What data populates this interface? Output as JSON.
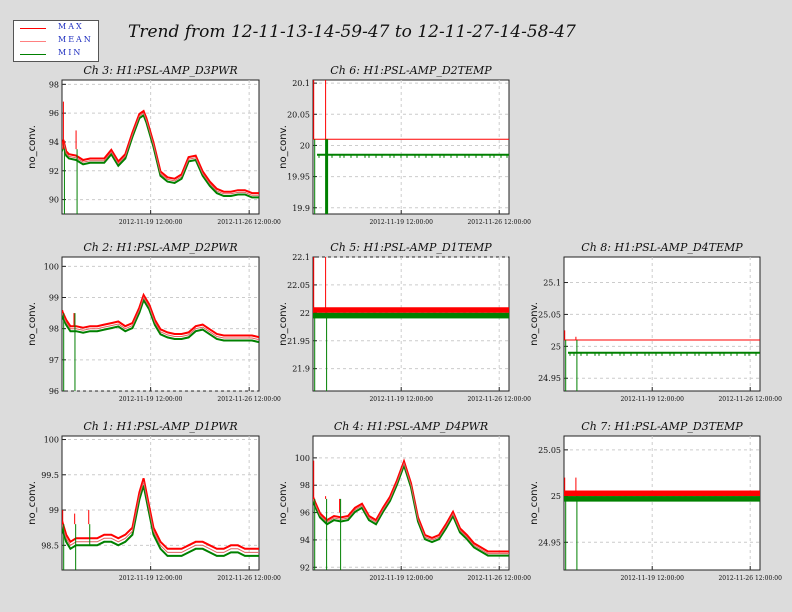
{
  "title": "Trend from 12-11-13-14-59-47 to 12-11-27-14-58-47",
  "legend": [
    {
      "label": "MAX",
      "color": "#ff0000"
    },
    {
      "label": "MEAN",
      "color": "#ff8080"
    },
    {
      "label": "MIN",
      "color": "#008000"
    }
  ],
  "colors": {
    "max": "#ff0000",
    "mean": "#e06060",
    "min": "#008000",
    "grid": "#cccccc"
  },
  "chart_data": [
    {
      "type": "line",
      "title": "Ch 3: H1:PSL-AMP_D3PWR",
      "ylabel": "no_conv.",
      "ylim": [
        89,
        98.3
      ],
      "yticks": [
        "90",
        "92",
        "94",
        "96",
        "98"
      ],
      "ytick_values": [
        90,
        92,
        94,
        96,
        98
      ],
      "xticks": [
        "2012-11-19 12:00:00",
        "2012-11-26 12:00:00"
      ],
      "xlim": [
        0,
        14
      ],
      "xtick_values": [
        6.3,
        13.3
      ],
      "series": [
        {
          "values_x": [
            0,
            0.1,
            0.15,
            0.3,
            0.5,
            1.0,
            1.5,
            2.0,
            2.5,
            3.0,
            3.5,
            4.0,
            4.5,
            5.0,
            5.5,
            5.8,
            6.0,
            6.5,
            7.0,
            7.5,
            8.0,
            8.5,
            9.0,
            9.5,
            10.0,
            10.5,
            11.0,
            11.5,
            12.0,
            12.5,
            13.0,
            13.5,
            14.0
          ],
          "values": [
            93.5,
            94.0,
            93.8,
            93.2,
            93.0,
            92.9,
            92.6,
            92.7,
            92.7,
            92.7,
            93.3,
            92.5,
            93.0,
            94.5,
            95.8,
            96.0,
            95.5,
            93.8,
            91.8,
            91.4,
            91.3,
            91.6,
            92.8,
            92.9,
            91.8,
            91.1,
            90.6,
            90.4,
            90.4,
            90.5,
            90.5,
            90.3,
            90.3
          ]
        }
      ],
      "spikes": [
        {
          "x": 0.1,
          "ymax": 96.8,
          "ymin": 89.0
        },
        {
          "x": 1.0,
          "ymax": 94.8,
          "ymin": 89.0
        }
      ],
      "band": 0.15
    },
    {
      "type": "line",
      "title": "Ch 6: H1:PSL-AMP_D2TEMP",
      "ylabel": "no_conv.",
      "ylim": [
        19.89,
        20.105
      ],
      "yticks": [
        "19.9",
        "19.95",
        "20",
        "20.05",
        "20.1"
      ],
      "ytick_values": [
        19.9,
        19.95,
        20.0,
        20.05,
        20.1
      ],
      "xticks": [
        "2012-11-19 12:00:00",
        "2012-11-26 12:00:00"
      ],
      "xlim": [
        0,
        14
      ],
      "xtick_values": [
        6.3,
        13.3
      ],
      "series": [
        {
          "values_x": [
            0,
            14
          ],
          "values": [
            20.01,
            20.01
          ]
        }
      ],
      "min_level": 19.985,
      "min_flicker": 19.98,
      "spikes": [
        {
          "x": 0.05,
          "ymax": 20.105,
          "ymin": 19.89
        },
        {
          "x": 0.9,
          "ymax": 20.105,
          "ymin": 19.89
        }
      ],
      "band": 0.004
    },
    {
      "type": "line",
      "title": "Ch 2: H1:PSL-AMP_D2PWR",
      "ylabel": "no_conv.",
      "ylim": [
        96,
        100.3
      ],
      "yticks": [
        "96",
        "97",
        "98",
        "99",
        "100"
      ],
      "ytick_values": [
        96,
        97,
        98,
        99,
        100
      ],
      "xticks": [
        "2012-11-19 12:00:00",
        "2012-11-26 12:00:00"
      ],
      "xlim": [
        0,
        14
      ],
      "xtick_values": [
        6.3,
        13.3
      ],
      "series": [
        {
          "values_x": [
            0,
            0.3,
            0.6,
            1.0,
            1.5,
            2.0,
            2.5,
            3.0,
            3.5,
            4.0,
            4.5,
            5.0,
            5.5,
            5.8,
            6.2,
            6.6,
            7.0,
            7.5,
            8.0,
            8.5,
            9.0,
            9.5,
            10.0,
            10.5,
            11.0,
            11.5,
            12.0,
            12.5,
            13.0,
            13.5,
            14.0
          ],
          "values": [
            98.5,
            98.2,
            98.0,
            98.0,
            97.95,
            98.0,
            98.0,
            98.05,
            98.1,
            98.15,
            98.0,
            98.1,
            98.6,
            99.0,
            98.7,
            98.2,
            97.9,
            97.8,
            97.75,
            97.75,
            97.8,
            98.0,
            98.05,
            97.9,
            97.75,
            97.7,
            97.7,
            97.7,
            97.7,
            97.7,
            97.65
          ]
        }
      ],
      "spikes": [
        {
          "x": 0.05,
          "ymax": 98.6,
          "ymin": 96.0
        },
        {
          "x": 0.85,
          "ymax": 98.1,
          "ymin": 96.0
        }
      ],
      "band": 0.08
    },
    {
      "type": "line",
      "title": "Ch 5: H1:PSL-AMP_D1TEMP",
      "ylabel": "no_conv.",
      "ylim": [
        21.86,
        22.1
      ],
      "yticks": [
        "21.9",
        "21.95",
        "22",
        "22.05",
        "22.1"
      ],
      "ytick_values": [
        21.9,
        21.95,
        22.0,
        22.05,
        22.1
      ],
      "xticks": [
        "2012-11-19 12:00:00",
        "2012-11-26 12:00:00"
      ],
      "xlim": [
        0,
        14
      ],
      "xtick_values": [
        6.3,
        13.3
      ],
      "series": [
        {
          "values_x": [
            0,
            14
          ],
          "values": [
            22.0,
            22.0
          ]
        }
      ],
      "max_band": [
        22.0,
        22.01
      ],
      "min_band": [
        21.99,
        22.0
      ],
      "spikes": [
        {
          "x": 0.05,
          "ymax": 22.1,
          "ymin": 21.86
        },
        {
          "x": 0.9,
          "ymax": 22.1,
          "ymin": 21.86
        }
      ],
      "band": 0.005
    },
    {
      "type": "line",
      "title": "Ch 8: H1:PSL-AMP_D4TEMP",
      "ylabel": "no_conv.",
      "ylim": [
        24.93,
        25.14
      ],
      "yticks": [
        "24.95",
        "25",
        "25.05",
        "25.1"
      ],
      "ytick_values": [
        24.95,
        25.0,
        25.05,
        25.1
      ],
      "xticks": [
        "2012-11-19 12:00:00",
        "2012-11-26 12:00:00"
      ],
      "xlim": [
        0,
        14
      ],
      "xtick_values": [
        6.3,
        13.3
      ],
      "series": [
        {
          "values_x": [
            0,
            14
          ],
          "values": [
            25.01,
            25.01
          ]
        }
      ],
      "min_level": 24.99,
      "min_flicker": 24.985,
      "spikes": [
        {
          "x": 0.05,
          "ymax": 25.025,
          "ymin": 24.93
        },
        {
          "x": 0.85,
          "ymax": 25.015,
          "ymin": 24.93
        }
      ],
      "band": 0.003
    },
    {
      "type": "line",
      "title": "Ch 1: H1:PSL-AMP_D1PWR",
      "ylabel": "no_conv.",
      "ylim": [
        98.15,
        100.05
      ],
      "yticks": [
        "98.5",
        "99",
        "99.5",
        "100"
      ],
      "ytick_values": [
        98.5,
        99,
        99.5,
        100
      ],
      "xticks": [
        "2012-11-19 12:00:00",
        "2012-11-26 12:00:00"
      ],
      "xlim": [
        0,
        14
      ],
      "xtick_values": [
        6.3,
        13.3
      ],
      "series": [
        {
          "values_x": [
            0,
            0.3,
            0.6,
            1.0,
            1.5,
            2.0,
            2.5,
            3.0,
            3.5,
            4.0,
            4.5,
            5.0,
            5.5,
            5.8,
            6.1,
            6.5,
            7.0,
            7.5,
            8.0,
            8.5,
            9.0,
            9.5,
            10.0,
            10.5,
            11.0,
            11.5,
            12.0,
            12.5,
            13.0,
            13.5,
            14.0
          ],
          "values": [
            98.8,
            98.6,
            98.5,
            98.55,
            98.55,
            98.55,
            98.55,
            98.6,
            98.6,
            98.55,
            98.6,
            98.7,
            99.2,
            99.4,
            99.1,
            98.7,
            98.5,
            98.4,
            98.4,
            98.4,
            98.45,
            98.5,
            98.5,
            98.45,
            98.4,
            98.4,
            98.45,
            98.45,
            98.4,
            98.4,
            98.4
          ]
        }
      ],
      "spikes": [
        {
          "x": 0.05,
          "ymax": 99.0,
          "ymin": 98.15
        },
        {
          "x": 0.9,
          "ymax": 98.95,
          "ymin": 98.15
        },
        {
          "x": 1.9,
          "ymax": 99.0,
          "ymin": 98.5
        }
      ],
      "band": 0.05
    },
    {
      "type": "line",
      "title": "Ch 4: H1:PSL-AMP_D4PWR",
      "ylabel": "no_conv.",
      "ylim": [
        91.8,
        101.6
      ],
      "yticks": [
        "92",
        "94",
        "96",
        "98",
        "100"
      ],
      "ytick_values": [
        92,
        94,
        96,
        98,
        100
      ],
      "xticks": [
        "2012-11-19 12:00:00",
        "2012-11-26 12:00:00"
      ],
      "xlim": [
        0,
        14
      ],
      "xtick_values": [
        6.3,
        13.3
      ],
      "series": [
        {
          "values_x": [
            0,
            0.2,
            0.5,
            1.0,
            1.5,
            2.0,
            2.5,
            3.0,
            3.5,
            4.0,
            4.5,
            5.0,
            5.5,
            6.0,
            6.5,
            7.0,
            7.5,
            8.0,
            8.5,
            9.0,
            9.5,
            10.0,
            10.5,
            11.0,
            11.5,
            12.0,
            12.5,
            13.0,
            13.5,
            14.0
          ],
          "values": [
            97.0,
            96.5,
            95.8,
            95.3,
            95.6,
            95.5,
            95.6,
            96.2,
            96.5,
            95.6,
            95.3,
            96.2,
            97.0,
            98.2,
            99.6,
            98.0,
            95.5,
            94.2,
            94.0,
            94.2,
            95.0,
            95.9,
            94.7,
            94.2,
            93.6,
            93.3,
            93.0,
            93.0,
            93.0,
            93.0
          ]
        }
      ],
      "spikes": [
        {
          "x": 0.05,
          "ymax": 99.8,
          "ymin": 91.8
        },
        {
          "x": 0.9,
          "ymax": 97.2,
          "ymin": 91.8
        },
        {
          "x": 1.9,
          "ymax": 96.0,
          "ymin": 91.8
        }
      ],
      "band": 0.15
    },
    {
      "type": "line",
      "title": "Ch 7: H1:PSL-AMP_D3TEMP",
      "ylabel": "no_conv.",
      "ylim": [
        24.92,
        25.065
      ],
      "yticks": [
        "24.95",
        "25",
        "25.05"
      ],
      "ytick_values": [
        24.95,
        25.0,
        25.05
      ],
      "xticks": [
        "2012-11-19 12:00:00",
        "2012-11-26 12:00:00"
      ],
      "xlim": [
        0,
        14
      ],
      "xtick_values": [
        6.3,
        13.3
      ],
      "series": [
        {
          "values_x": [
            0,
            14
          ],
          "values": [
            25.0,
            25.0
          ]
        }
      ],
      "max_band": [
        25.0,
        25.006
      ],
      "min_band": [
        24.994,
        25.0
      ],
      "spikes": [
        {
          "x": 0.05,
          "ymax": 25.02,
          "ymin": 24.92
        },
        {
          "x": 0.85,
          "ymax": 25.02,
          "ymin": 24.92
        }
      ],
      "band": 0.003
    }
  ]
}
